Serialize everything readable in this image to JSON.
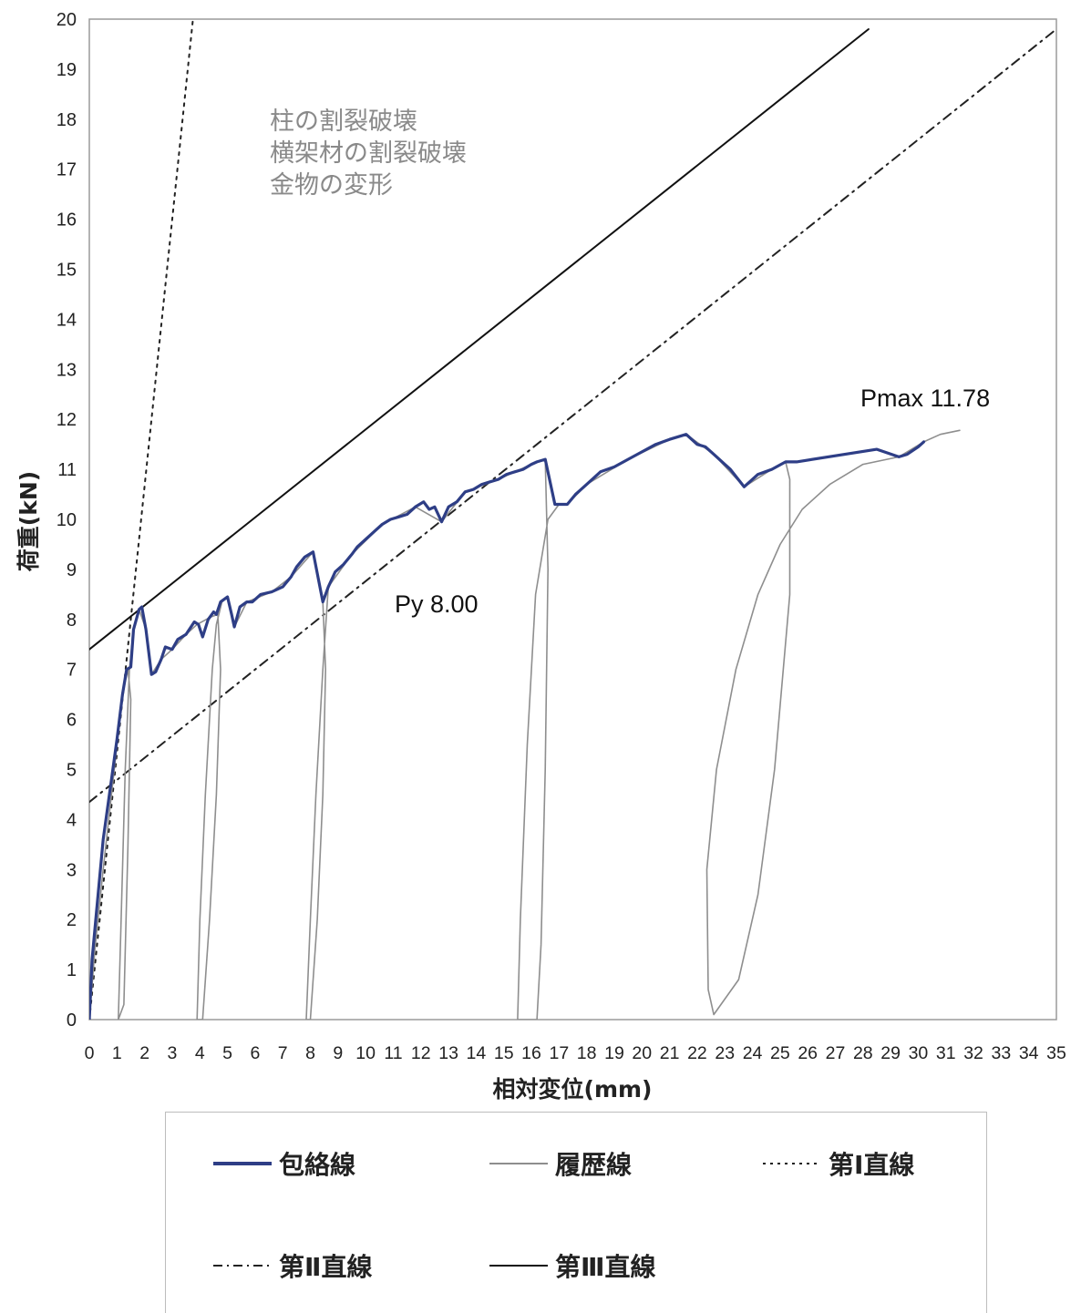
{
  "chart_data": {
    "type": "line",
    "xlabel": "相対変位(mm)",
    "ylabel": "荷重(kN)",
    "xlim": [
      0,
      35
    ],
    "ylim": [
      0,
      20
    ],
    "x_ticks": [
      "0",
      "1",
      "2",
      "3",
      "4",
      "5",
      "6",
      "7",
      "8",
      "9",
      "10",
      "11",
      "12",
      "13",
      "14",
      "15",
      "16",
      "17",
      "18",
      "19",
      "20",
      "21",
      "22",
      "23",
      "24",
      "25",
      "26",
      "27",
      "28",
      "29",
      "30",
      "31",
      "32",
      "33",
      "34",
      "35"
    ],
    "y_ticks": [
      "0",
      "1",
      "2",
      "3",
      "4",
      "5",
      "6",
      "7",
      "8",
      "9",
      "10",
      "11",
      "12",
      "13",
      "14",
      "15",
      "16",
      "17",
      "18",
      "19",
      "20"
    ],
    "grid": false,
    "legend_position": "bottom",
    "annotations": {
      "pmax": "Pmax 11.78",
      "py": "Py 8.00",
      "failure_notes": [
        "柱の割裂破壊",
        "横架材の割裂破壊",
        "金物の変形"
      ]
    },
    "series": [
      {
        "name": "包絡線",
        "color": "#2e3e86",
        "style": "solid-thick",
        "points": [
          [
            0,
            0
          ],
          [
            0.1,
            1.2
          ],
          [
            0.3,
            2.4
          ],
          [
            0.5,
            3.6
          ],
          [
            0.8,
            4.8
          ],
          [
            1.0,
            5.6
          ],
          [
            1.2,
            6.5
          ],
          [
            1.35,
            7.0
          ],
          [
            1.5,
            7.05
          ],
          [
            1.6,
            7.8
          ],
          [
            1.8,
            8.2
          ],
          [
            1.9,
            8.25
          ],
          [
            2.05,
            7.8
          ],
          [
            2.25,
            6.9
          ],
          [
            2.4,
            6.95
          ],
          [
            2.6,
            7.2
          ],
          [
            2.75,
            7.45
          ],
          [
            3.0,
            7.4
          ],
          [
            3.2,
            7.6
          ],
          [
            3.5,
            7.7
          ],
          [
            3.8,
            7.95
          ],
          [
            3.95,
            7.9
          ],
          [
            4.1,
            7.65
          ],
          [
            4.3,
            8.0
          ],
          [
            4.5,
            8.15
          ],
          [
            4.6,
            8.1
          ],
          [
            4.75,
            8.35
          ],
          [
            5.0,
            8.45
          ],
          [
            5.15,
            8.1
          ],
          [
            5.25,
            7.85
          ],
          [
            5.45,
            8.25
          ],
          [
            5.7,
            8.35
          ],
          [
            5.9,
            8.35
          ],
          [
            6.2,
            8.5
          ],
          [
            6.6,
            8.55
          ],
          [
            7.0,
            8.65
          ],
          [
            7.3,
            8.85
          ],
          [
            7.5,
            9.05
          ],
          [
            7.8,
            9.25
          ],
          [
            8.1,
            9.35
          ],
          [
            8.45,
            8.35
          ],
          [
            8.65,
            8.65
          ],
          [
            8.9,
            8.95
          ],
          [
            9.2,
            9.1
          ],
          [
            9.5,
            9.3
          ],
          [
            9.7,
            9.45
          ],
          [
            10.0,
            9.6
          ],
          [
            10.3,
            9.75
          ],
          [
            10.6,
            9.9
          ],
          [
            10.9,
            10.0
          ],
          [
            11.2,
            10.05
          ],
          [
            11.5,
            10.1
          ],
          [
            11.8,
            10.25
          ],
          [
            12.1,
            10.35
          ],
          [
            12.3,
            10.2
          ],
          [
            12.5,
            10.25
          ],
          [
            12.75,
            9.95
          ],
          [
            13.0,
            10.25
          ],
          [
            13.3,
            10.35
          ],
          [
            13.6,
            10.55
          ],
          [
            13.9,
            10.6
          ],
          [
            14.2,
            10.7
          ],
          [
            14.5,
            10.75
          ],
          [
            14.8,
            10.8
          ],
          [
            15.1,
            10.9
          ],
          [
            15.4,
            10.95
          ],
          [
            15.7,
            11.0
          ],
          [
            16.0,
            11.1
          ],
          [
            16.2,
            11.15
          ],
          [
            16.5,
            11.2
          ],
          [
            16.85,
            10.3
          ],
          [
            17.3,
            10.3
          ],
          [
            17.6,
            10.5
          ],
          [
            18.0,
            10.7
          ],
          [
            18.5,
            10.95
          ],
          [
            19.0,
            11.05
          ],
          [
            19.5,
            11.2
          ],
          [
            20.0,
            11.35
          ],
          [
            20.5,
            11.5
          ],
          [
            21.0,
            11.6
          ],
          [
            21.6,
            11.7
          ],
          [
            22.0,
            11.5
          ],
          [
            22.3,
            11.45
          ],
          [
            22.6,
            11.3
          ],
          [
            23.2,
            11.0
          ],
          [
            23.7,
            10.65
          ],
          [
            24.2,
            10.9
          ],
          [
            24.7,
            11.0
          ],
          [
            25.2,
            11.15
          ],
          [
            25.6,
            11.15
          ],
          [
            28.5,
            11.4
          ],
          [
            29.3,
            11.25
          ],
          [
            29.6,
            11.3
          ],
          [
            30.0,
            11.45
          ],
          [
            30.2,
            11.55
          ]
        ]
      },
      {
        "name": "履歴線",
        "color": "#8e8e8e",
        "style": "solid-thin",
        "points": [
          [
            0,
            0
          ],
          [
            0.2,
            1.4
          ],
          [
            0.5,
            3.0
          ],
          [
            0.8,
            4.5
          ],
          [
            1.2,
            6.5
          ],
          [
            1.4,
            7.0
          ],
          [
            1.5,
            6.4
          ],
          [
            1.4,
            3.5
          ],
          [
            1.25,
            0.3
          ],
          [
            1.05,
            0.0
          ],
          [
            1.15,
            2.0
          ],
          [
            1.3,
            5.0
          ],
          [
            1.45,
            7.0
          ],
          [
            1.6,
            7.8
          ],
          [
            1.8,
            8.2
          ],
          [
            2.05,
            7.8
          ],
          [
            2.25,
            6.9
          ],
          [
            2.6,
            7.2
          ],
          [
            3.0,
            7.4
          ],
          [
            3.5,
            7.7
          ],
          [
            3.9,
            7.9
          ],
          [
            4.4,
            8.05
          ],
          [
            4.65,
            8.1
          ],
          [
            4.75,
            7.0
          ],
          [
            4.6,
            4.5
          ],
          [
            4.35,
            2.0
          ],
          [
            4.1,
            0.0
          ],
          [
            3.9,
            0.0
          ],
          [
            4.0,
            2.0
          ],
          [
            4.2,
            4.5
          ],
          [
            4.45,
            7.0
          ],
          [
            4.6,
            7.9
          ],
          [
            4.8,
            8.35
          ],
          [
            5.0,
            8.45
          ],
          [
            5.25,
            7.85
          ],
          [
            5.7,
            8.35
          ],
          [
            6.6,
            8.55
          ],
          [
            7.3,
            8.85
          ],
          [
            8.1,
            9.35
          ],
          [
            8.45,
            8.35
          ],
          [
            8.55,
            7.0
          ],
          [
            8.45,
            4.5
          ],
          [
            8.25,
            2.0
          ],
          [
            8.0,
            0.0
          ],
          [
            7.85,
            0.0
          ],
          [
            8.0,
            2.0
          ],
          [
            8.2,
            4.5
          ],
          [
            8.45,
            7.0
          ],
          [
            8.65,
            8.65
          ],
          [
            9.5,
            9.3
          ],
          [
            10.6,
            9.9
          ],
          [
            11.8,
            10.25
          ],
          [
            12.75,
            9.95
          ],
          [
            13.6,
            10.55
          ],
          [
            14.8,
            10.8
          ],
          [
            16.0,
            11.1
          ],
          [
            16.5,
            11.2
          ],
          [
            16.6,
            9.0
          ],
          [
            16.5,
            5.0
          ],
          [
            16.35,
            1.5
          ],
          [
            16.2,
            0.0
          ],
          [
            15.5,
            0.0
          ],
          [
            15.6,
            2.0
          ],
          [
            15.85,
            5.5
          ],
          [
            16.15,
            8.5
          ],
          [
            16.6,
            10.0
          ],
          [
            17.0,
            10.3
          ],
          [
            17.3,
            10.3
          ],
          [
            18.0,
            10.7
          ],
          [
            19.5,
            11.2
          ],
          [
            21.0,
            11.6
          ],
          [
            21.6,
            11.7
          ],
          [
            22.6,
            11.3
          ],
          [
            23.7,
            10.65
          ],
          [
            24.7,
            11.0
          ],
          [
            25.2,
            11.15
          ],
          [
            25.35,
            10.8
          ],
          [
            25.35,
            8.5
          ],
          [
            24.8,
            5.0
          ],
          [
            24.2,
            2.5
          ],
          [
            23.5,
            0.8
          ],
          [
            22.6,
            0.1
          ],
          [
            22.4,
            0.6
          ],
          [
            22.35,
            3.0
          ],
          [
            22.7,
            5.0
          ],
          [
            23.4,
            7.0
          ],
          [
            24.2,
            8.5
          ],
          [
            25.0,
            9.5
          ],
          [
            25.8,
            10.2
          ],
          [
            26.8,
            10.7
          ],
          [
            28.0,
            11.1
          ],
          [
            29.3,
            11.25
          ],
          [
            30.2,
            11.55
          ],
          [
            30.8,
            11.7
          ],
          [
            31.5,
            11.78
          ]
        ]
      },
      {
        "name": "第Ⅰ直線",
        "color": "#222222",
        "style": "dotted",
        "points": [
          [
            0,
            0
          ],
          [
            3.75,
            20
          ]
        ]
      },
      {
        "name": "第Ⅱ直線",
        "color": "#222222",
        "style": "dash-dot",
        "points": [
          [
            0,
            4.35
          ],
          [
            35,
            19.8
          ]
        ]
      },
      {
        "name": "第Ⅲ直線",
        "color": "#111111",
        "style": "solid",
        "points": [
          [
            0,
            7.4
          ],
          [
            28.2,
            19.8
          ]
        ]
      }
    ]
  }
}
